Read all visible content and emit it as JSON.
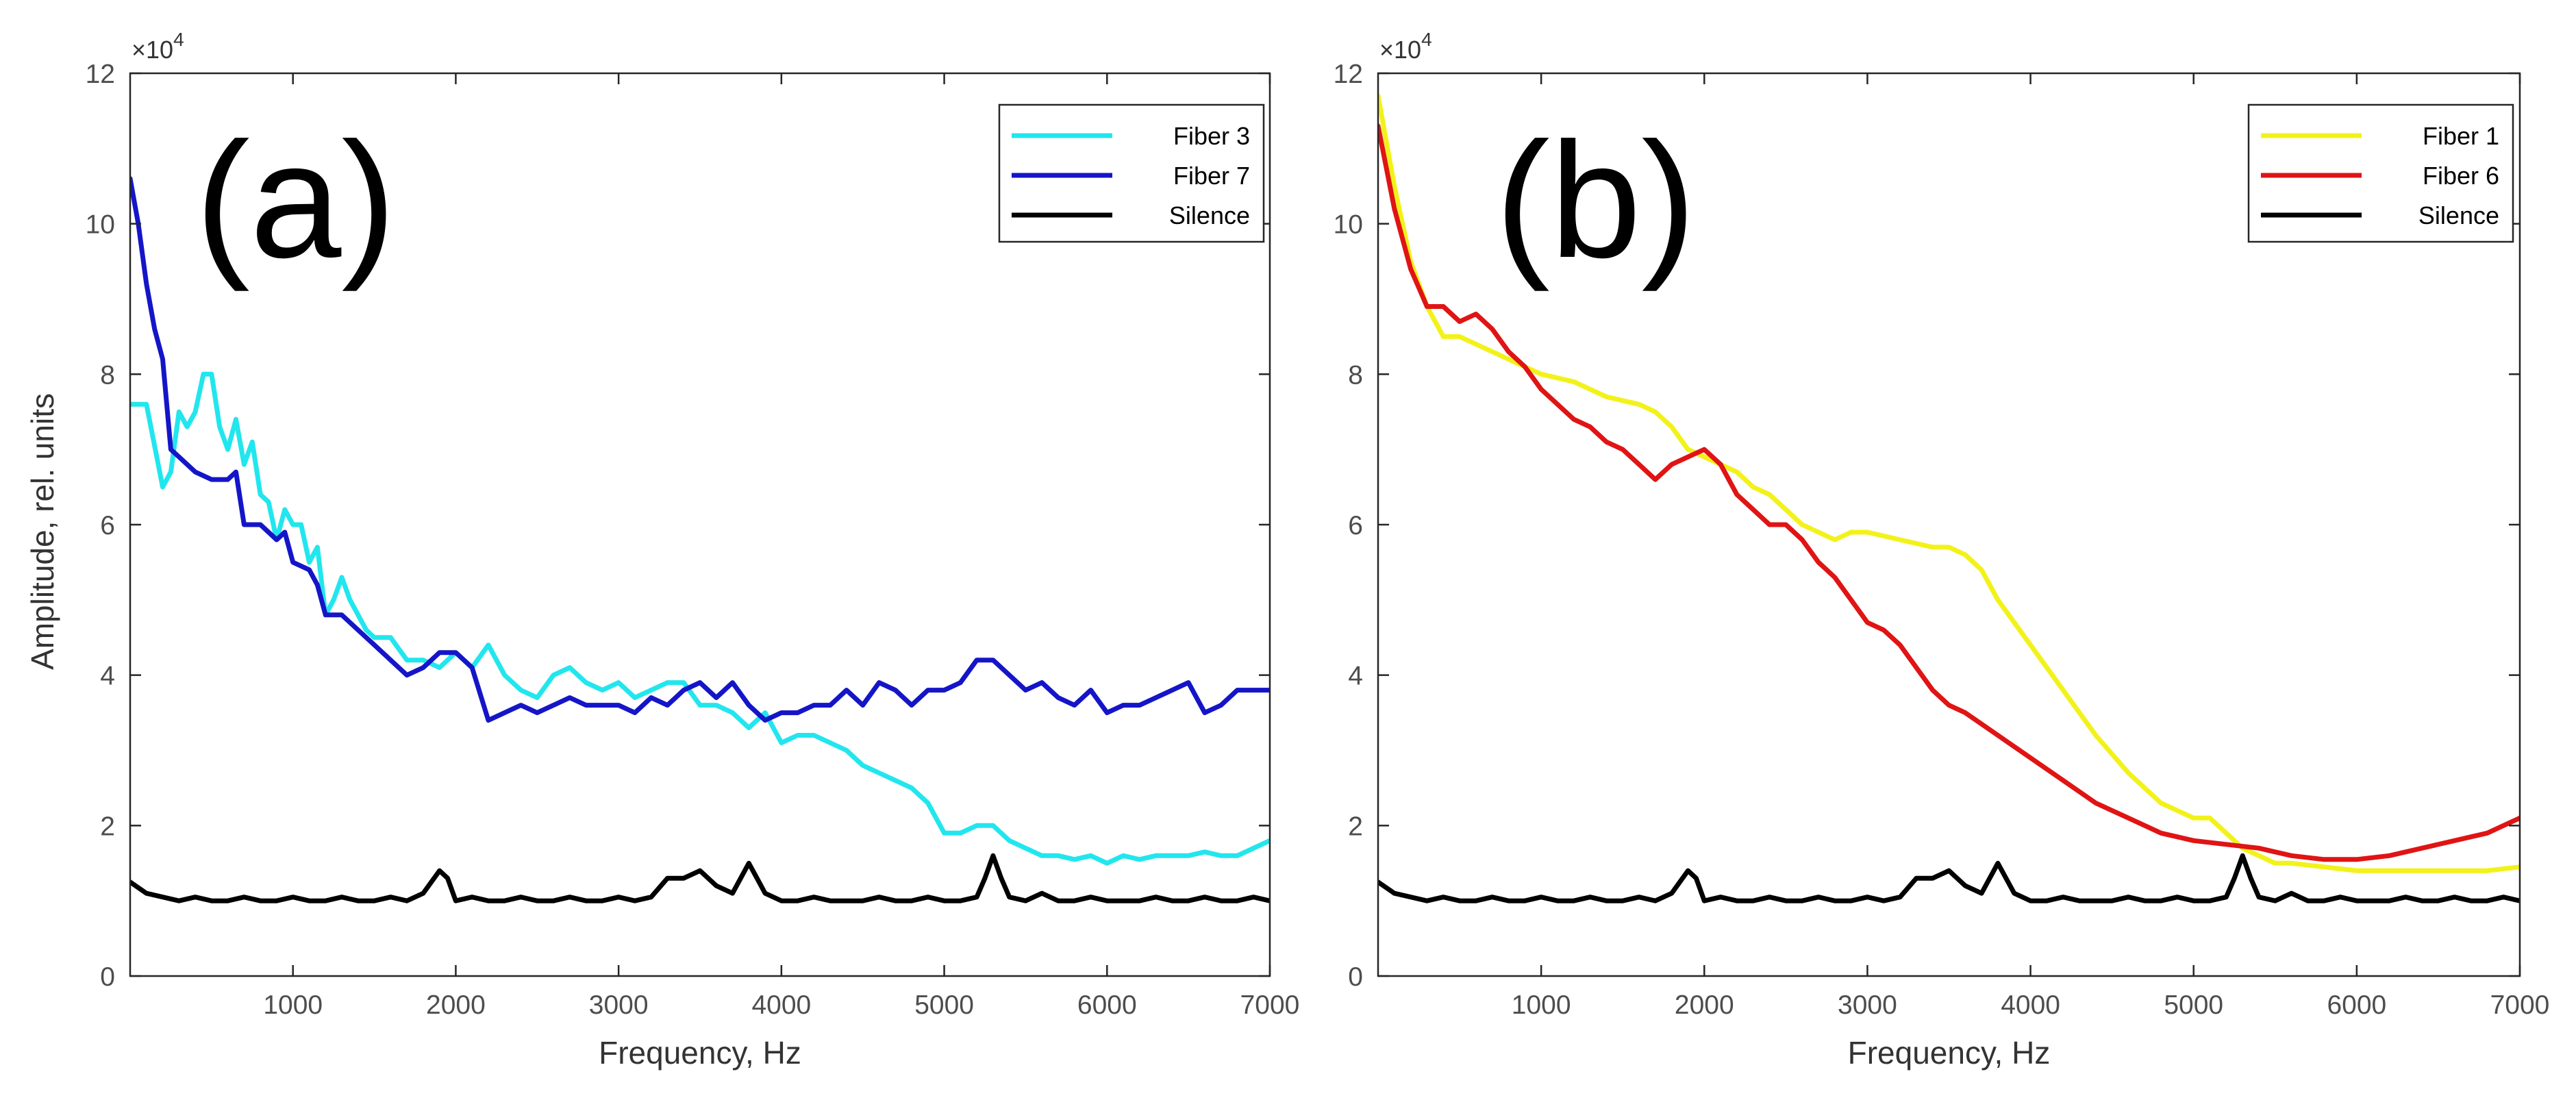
{
  "colors": {
    "fiber3": "#22E6EE",
    "fiber7": "#1515C8",
    "fiber1": "#F2F21A",
    "fiber6": "#E01414",
    "silence": "#000000",
    "axis": "#262626",
    "tick_text": "#4d4d4d"
  },
  "chart_data": [
    {
      "type": "line",
      "panel_label": "(a)",
      "title": "",
      "xlabel": "Frequency, Hz",
      "ylabel": "Amplitude, rel. units",
      "xlim": [
        0,
        7000
      ],
      "ylim": [
        0,
        12
      ],
      "y_multiplier": "×10",
      "y_exponent": "4",
      "xticks": [
        1000,
        2000,
        3000,
        4000,
        5000,
        6000,
        7000
      ],
      "xtick_labels": [
        "1000",
        "2000",
        "3000",
        "4000",
        "5000",
        "6000",
        "7000"
      ],
      "yticks": [
        0,
        2,
        4,
        6,
        8,
        10,
        12
      ],
      "ytick_labels": [
        "0",
        "2",
        "4",
        "6",
        "8",
        "10",
        "12"
      ],
      "grid": false,
      "legend_position": "top-right",
      "series": [
        {
          "name": "Fiber 3",
          "color": "#22E6EE",
          "x": [
            0,
            100,
            200,
            250,
            300,
            350,
            400,
            450,
            500,
            550,
            600,
            650,
            700,
            750,
            800,
            850,
            900,
            950,
            1000,
            1050,
            1100,
            1150,
            1200,
            1250,
            1300,
            1350,
            1400,
            1450,
            1500,
            1600,
            1700,
            1800,
            1900,
            2000,
            2100,
            2200,
            2300,
            2400,
            2500,
            2600,
            2700,
            2800,
            2900,
            3000,
            3100,
            3200,
            3300,
            3400,
            3500,
            3600,
            3700,
            3800,
            3900,
            4000,
            4100,
            4200,
            4300,
            4400,
            4500,
            4600,
            4700,
            4800,
            4900,
            5000,
            5100,
            5200,
            5300,
            5400,
            5500,
            5600,
            5700,
            5800,
            5900,
            6000,
            6100,
            6200,
            6300,
            6400,
            6500,
            6600,
            6700,
            6800,
            6900,
            7000
          ],
          "values": [
            7.6,
            7.6,
            6.5,
            6.7,
            7.5,
            7.3,
            7.5,
            8.0,
            8.0,
            7.3,
            7.0,
            7.4,
            6.8,
            7.1,
            6.4,
            6.3,
            5.8,
            6.2,
            6.0,
            6.0,
            5.5,
            5.7,
            4.8,
            5.0,
            5.3,
            5.0,
            4.8,
            4.6,
            4.5,
            4.5,
            4.2,
            4.2,
            4.1,
            4.3,
            4.1,
            4.4,
            4.0,
            3.8,
            3.7,
            4.0,
            4.1,
            3.9,
            3.8,
            3.9,
            3.7,
            3.8,
            3.9,
            3.9,
            3.6,
            3.6,
            3.5,
            3.3,
            3.5,
            3.1,
            3.2,
            3.2,
            3.1,
            3.0,
            2.8,
            2.7,
            2.6,
            2.5,
            2.3,
            1.9,
            1.9,
            2.0,
            2.0,
            1.8,
            1.7,
            1.6,
            1.6,
            1.55,
            1.6,
            1.5,
            1.6,
            1.55,
            1.6,
            1.6,
            1.6,
            1.65,
            1.6,
            1.6,
            1.7,
            1.8
          ]
        },
        {
          "name": "Fiber 7",
          "color": "#1515C8",
          "x": [
            0,
            50,
            100,
            150,
            200,
            250,
            300,
            350,
            400,
            500,
            600,
            650,
            700,
            800,
            900,
            950,
            1000,
            1100,
            1150,
            1200,
            1300,
            1400,
            1500,
            1600,
            1700,
            1800,
            1900,
            2000,
            2100,
            2200,
            2300,
            2400,
            2500,
            2600,
            2700,
            2800,
            2900,
            3000,
            3100,
            3200,
            3300,
            3400,
            3500,
            3600,
            3700,
            3800,
            3900,
            4000,
            4100,
            4200,
            4300,
            4400,
            4500,
            4600,
            4700,
            4800,
            4900,
            5000,
            5100,
            5200,
            5300,
            5400,
            5500,
            5600,
            5700,
            5800,
            5900,
            6000,
            6100,
            6200,
            6300,
            6400,
            6500,
            6600,
            6700,
            6800,
            6900,
            7000
          ],
          "values": [
            10.6,
            10.0,
            9.2,
            8.6,
            8.2,
            7.0,
            6.9,
            6.8,
            6.7,
            6.6,
            6.6,
            6.7,
            6.0,
            6.0,
            5.8,
            5.9,
            5.5,
            5.4,
            5.2,
            4.8,
            4.8,
            4.6,
            4.4,
            4.2,
            4.0,
            4.1,
            4.3,
            4.3,
            4.1,
            3.4,
            3.5,
            3.6,
            3.5,
            3.6,
            3.7,
            3.6,
            3.6,
            3.6,
            3.5,
            3.7,
            3.6,
            3.8,
            3.9,
            3.7,
            3.9,
            3.6,
            3.4,
            3.5,
            3.5,
            3.6,
            3.6,
            3.8,
            3.6,
            3.9,
            3.8,
            3.6,
            3.8,
            3.8,
            3.9,
            4.2,
            4.2,
            4.0,
            3.8,
            3.9,
            3.7,
            3.6,
            3.8,
            3.5,
            3.6,
            3.6,
            3.7,
            3.8,
            3.9,
            3.5,
            3.6,
            3.8,
            3.8,
            3.8
          ]
        },
        {
          "name": "Silence",
          "color": "#000000",
          "x": [
            0,
            100,
            200,
            300,
            400,
            500,
            600,
            700,
            800,
            900,
            1000,
            1100,
            1200,
            1300,
            1400,
            1500,
            1600,
            1700,
            1800,
            1850,
            1900,
            1950,
            2000,
            2100,
            2200,
            2300,
            2400,
            2500,
            2600,
            2700,
            2800,
            2900,
            3000,
            3100,
            3200,
            3300,
            3400,
            3500,
            3600,
            3700,
            3750,
            3800,
            3850,
            3900,
            4000,
            4100,
            4200,
            4300,
            4400,
            4500,
            4600,
            4700,
            4800,
            4900,
            5000,
            5100,
            5200,
            5250,
            5300,
            5350,
            5400,
            5500,
            5600,
            5700,
            5800,
            5900,
            6000,
            6100,
            6200,
            6300,
            6400,
            6500,
            6600,
            6700,
            6800,
            6900,
            7000
          ],
          "values": [
            1.25,
            1.1,
            1.05,
            1.0,
            1.05,
            1.0,
            1.0,
            1.05,
            1.0,
            1.0,
            1.05,
            1.0,
            1.0,
            1.05,
            1.0,
            1.0,
            1.05,
            1.0,
            1.1,
            1.25,
            1.4,
            1.3,
            1.0,
            1.05,
            1.0,
            1.0,
            1.05,
            1.0,
            1.0,
            1.05,
            1.0,
            1.0,
            1.05,
            1.0,
            1.05,
            1.3,
            1.3,
            1.4,
            1.2,
            1.1,
            1.3,
            1.5,
            1.3,
            1.1,
            1.0,
            1.0,
            1.05,
            1.0,
            1.0,
            1.0,
            1.05,
            1.0,
            1.0,
            1.05,
            1.0,
            1.0,
            1.05,
            1.3,
            1.6,
            1.3,
            1.05,
            1.0,
            1.1,
            1.0,
            1.0,
            1.05,
            1.0,
            1.0,
            1.0,
            1.05,
            1.0,
            1.0,
            1.05,
            1.0,
            1.0,
            1.05,
            1.0
          ]
        }
      ]
    },
    {
      "type": "line",
      "panel_label": "(b)",
      "title": "",
      "xlabel": "Frequency, Hz",
      "ylabel": "",
      "xlim": [
        0,
        7000
      ],
      "ylim": [
        0,
        12
      ],
      "y_multiplier": "×10",
      "y_exponent": "4",
      "xticks": [
        1000,
        2000,
        3000,
        4000,
        5000,
        6000,
        7000
      ],
      "xtick_labels": [
        "1000",
        "2000",
        "3000",
        "4000",
        "5000",
        "6000",
        "7000"
      ],
      "yticks": [
        0,
        2,
        4,
        6,
        8,
        10,
        12
      ],
      "ytick_labels": [
        "0",
        "2",
        "4",
        "6",
        "8",
        "10",
        "12"
      ],
      "grid": false,
      "legend_position": "top-right",
      "series": [
        {
          "name": "Fiber 1",
          "color": "#F2F21A",
          "x": [
            0,
            100,
            200,
            300,
            400,
            500,
            600,
            700,
            800,
            900,
            1000,
            1200,
            1400,
            1600,
            1700,
            1800,
            1900,
            2000,
            2100,
            2200,
            2300,
            2400,
            2500,
            2600,
            2700,
            2800,
            2900,
            3000,
            3200,
            3400,
            3500,
            3600,
            3700,
            3800,
            3900,
            4000,
            4200,
            4400,
            4600,
            4800,
            5000,
            5100,
            5200,
            5300,
            5400,
            5500,
            5600,
            5800,
            6000,
            6200,
            6400,
            6600,
            6800,
            7000
          ],
          "values": [
            11.7,
            10.5,
            9.5,
            8.9,
            8.5,
            8.5,
            8.4,
            8.3,
            8.2,
            8.1,
            8.0,
            7.9,
            7.7,
            7.6,
            7.5,
            7.3,
            7.0,
            6.9,
            6.8,
            6.7,
            6.5,
            6.4,
            6.2,
            6.0,
            5.9,
            5.8,
            5.9,
            5.9,
            5.8,
            5.7,
            5.7,
            5.6,
            5.4,
            5.0,
            4.7,
            4.4,
            3.8,
            3.2,
            2.7,
            2.3,
            2.1,
            2.1,
            1.9,
            1.7,
            1.6,
            1.5,
            1.5,
            1.45,
            1.4,
            1.4,
            1.4,
            1.4,
            1.4,
            1.45
          ]
        },
        {
          "name": "Fiber 6",
          "color": "#E01414",
          "x": [
            0,
            100,
            200,
            300,
            400,
            500,
            600,
            700,
            800,
            900,
            1000,
            1100,
            1200,
            1300,
            1400,
            1500,
            1600,
            1700,
            1800,
            1900,
            2000,
            2100,
            2200,
            2300,
            2400,
            2500,
            2600,
            2700,
            2800,
            2900,
            3000,
            3100,
            3200,
            3300,
            3400,
            3500,
            3600,
            3800,
            4000,
            4200,
            4400,
            4600,
            4800,
            5000,
            5200,
            5400,
            5600,
            5800,
            6000,
            6200,
            6400,
            6600,
            6800,
            7000
          ],
          "values": [
            11.3,
            10.2,
            9.4,
            8.9,
            8.9,
            8.7,
            8.8,
            8.6,
            8.3,
            8.1,
            7.8,
            7.6,
            7.4,
            7.3,
            7.1,
            7.0,
            6.8,
            6.6,
            6.8,
            6.9,
            7.0,
            6.8,
            6.4,
            6.2,
            6.0,
            6.0,
            5.8,
            5.5,
            5.3,
            5.0,
            4.7,
            4.6,
            4.4,
            4.1,
            3.8,
            3.6,
            3.5,
            3.2,
            2.9,
            2.6,
            2.3,
            2.1,
            1.9,
            1.8,
            1.75,
            1.7,
            1.6,
            1.55,
            1.55,
            1.6,
            1.7,
            1.8,
            1.9,
            2.1
          ]
        },
        {
          "name": "Silence",
          "color": "#000000",
          "x": [
            0,
            100,
            200,
            300,
            400,
            500,
            600,
            700,
            800,
            900,
            1000,
            1100,
            1200,
            1300,
            1400,
            1500,
            1600,
            1700,
            1800,
            1850,
            1900,
            1950,
            2000,
            2100,
            2200,
            2300,
            2400,
            2500,
            2600,
            2700,
            2800,
            2900,
            3000,
            3100,
            3200,
            3300,
            3400,
            3500,
            3600,
            3700,
            3750,
            3800,
            3850,
            3900,
            4000,
            4100,
            4200,
            4300,
            4400,
            4500,
            4600,
            4700,
            4800,
            4900,
            5000,
            5100,
            5200,
            5250,
            5300,
            5350,
            5400,
            5500,
            5600,
            5700,
            5800,
            5900,
            6000,
            6100,
            6200,
            6300,
            6400,
            6500,
            6600,
            6700,
            6800,
            6900,
            7000
          ],
          "values": [
            1.25,
            1.1,
            1.05,
            1.0,
            1.05,
            1.0,
            1.0,
            1.05,
            1.0,
            1.0,
            1.05,
            1.0,
            1.0,
            1.05,
            1.0,
            1.0,
            1.05,
            1.0,
            1.1,
            1.25,
            1.4,
            1.3,
            1.0,
            1.05,
            1.0,
            1.0,
            1.05,
            1.0,
            1.0,
            1.05,
            1.0,
            1.0,
            1.05,
            1.0,
            1.05,
            1.3,
            1.3,
            1.4,
            1.2,
            1.1,
            1.3,
            1.5,
            1.3,
            1.1,
            1.0,
            1.0,
            1.05,
            1.0,
            1.0,
            1.0,
            1.05,
            1.0,
            1.0,
            1.05,
            1.0,
            1.0,
            1.05,
            1.3,
            1.6,
            1.3,
            1.05,
            1.0,
            1.1,
            1.0,
            1.0,
            1.05,
            1.0,
            1.0,
            1.0,
            1.05,
            1.0,
            1.0,
            1.05,
            1.0,
            1.0,
            1.05,
            1.0
          ]
        }
      ]
    }
  ]
}
